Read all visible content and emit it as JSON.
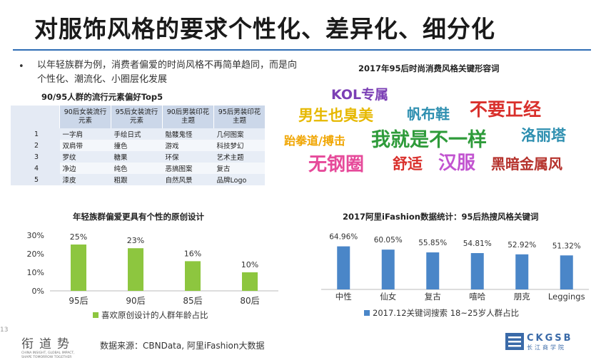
{
  "title": "对服饰风格的要求个性化、差异化、细分化",
  "intro": {
    "bullet": "•",
    "text": "以年轻族群为例，消费者偏爱的时尚风格不再简单趋同，而是向个性化、潮流化、小圈层化发展"
  },
  "table": {
    "title": "90/95人群的流行元素偏好Top5",
    "headers": [
      "",
      "90后女装流行元素",
      "95后女装流行元素",
      "90后男装印花主题",
      "95后男装印花主题"
    ],
    "rows": [
      [
        "1",
        "一字肩",
        "手绘日式",
        "骷髅鬼怪",
        "几何图案"
      ],
      [
        "2",
        "双肩带",
        "撞色",
        "游戏",
        "科技梦幻"
      ],
      [
        "3",
        "罗纹",
        "糖果",
        "环保",
        "艺术主题"
      ],
      [
        "4",
        "净边",
        "纯色",
        "恶搞图案",
        "复古"
      ],
      [
        "5",
        "漆皮",
        "粗跟",
        "自然风景",
        "品牌Logo"
      ]
    ]
  },
  "wordcloud": {
    "title": "2017年95后时尚消费风格关键形容词",
    "words": [
      {
        "text": "KOL专属",
        "color": "#7b3fb5"
      },
      {
        "text": "男生也臭美",
        "color": "#e6b800"
      },
      {
        "text": "帆布鞋",
        "color": "#2e8fb0"
      },
      {
        "text": "不要正经",
        "color": "#d9302c"
      },
      {
        "text": "跆拳道/搏击",
        "color": "#f0a500"
      },
      {
        "text": "我就是不一样",
        "color": "#2e9b3a"
      },
      {
        "text": "洛丽塔",
        "color": "#2e8fb0"
      },
      {
        "text": "无钢圈",
        "color": "#e64a9a"
      },
      {
        "text": "舒适",
        "color": "#d9302c"
      },
      {
        "text": "汉服",
        "color": "#c254d0"
      },
      {
        "text": "黑暗金属风",
        "color": "#b5322c"
      }
    ]
  },
  "bar_chart_left": {
    "title": "年轻族群偏爱更具有个性的原创设计"
  },
  "bar_chart_right": {
    "title": "2017阿里iFashion数据统计：95后热搜风格关键词"
  },
  "chart_data": [
    {
      "type": "bar",
      "title": "年轻族群偏爱更具有个性的原创设计",
      "categories": [
        "95后",
        "90后",
        "85后",
        "80后"
      ],
      "series": [
        {
          "name": "喜欢原创设计的人群年龄占比",
          "values": [
            25,
            23,
            16,
            10
          ],
          "color": "#8dc63f"
        }
      ],
      "data_labels": [
        "25%",
        "23%",
        "16%",
        "10%"
      ],
      "y_ticks": [
        "30%",
        "20%",
        "10%",
        "0%"
      ],
      "ylim": [
        0,
        30
      ],
      "legend": "bottom",
      "grid": false
    },
    {
      "type": "bar",
      "title": "2017阿里iFashion数据统计：95后热搜风格关键词",
      "categories": [
        "中性",
        "仙女",
        "复古",
        "嘻哈",
        "朋克",
        "Leggings"
      ],
      "series": [
        {
          "name": "2017.12关键词搜索 18~25岁人群占比",
          "values": [
            64.96,
            60.05,
            55.85,
            54.81,
            52.92,
            51.32
          ],
          "color": "#4a86c8"
        }
      ],
      "data_labels": [
        "64.96%",
        "60.05%",
        "55.85%",
        "54.81%",
        "52.92%",
        "51.32%"
      ],
      "ylim": [
        0,
        70
      ],
      "legend": "bottom",
      "grid": false
    }
  ],
  "footer": {
    "source": "数据来源：CBNData, 阿里iFashion大数据",
    "page_number": "13",
    "logo_left_chars": [
      "衔",
      "道",
      "势"
    ],
    "logo_left_tagline": "CHINA INSIGHT, GLOBAL IMPACT, SHAPE TOMORROW TOGETHER",
    "logo_right_name": "CKGSB",
    "logo_right_cn": "长江商学院"
  }
}
